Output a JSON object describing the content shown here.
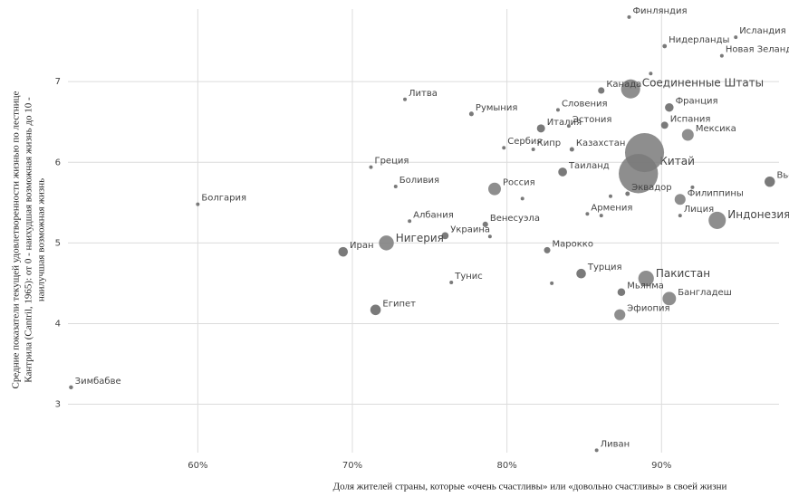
{
  "chart_data": {
    "type": "scatter",
    "x_label": "Доля жителей страны, которые «очень счастливы» или «довольно счастливы» в своей жизни",
    "y_label": [
      "Средние показатели текущей удовлетворенности жизнью по лестнице",
      "Кантрила (Cantril, 1965): от 0 - наихудшая возможная жизнь до 10 -",
      "наилучшая возможная жизнь"
    ],
    "labels": [
      "Финляндия",
      "Исландия",
      "Нидерланды",
      "Новая Зеландия",
      "Соединенные Штаты",
      "Канада",
      "Литва",
      "Румыния",
      "Словения",
      "Франция",
      "Испания",
      "Италия",
      "Эстония",
      "Мексика",
      "Сербия",
      "Кипр",
      "Казахстан",
      "Китай",
      "Греция",
      "Таиланд",
      "Вьетнам",
      "Боливия",
      "Россия",
      "Эквадор",
      "Филиппины",
      "Болгария",
      "Армения",
      "Лиция",
      "Индонезия",
      "Албания",
      "Венесуэла",
      "Украина",
      "Нигерия",
      "Иран",
      "Марокко",
      "Турция",
      "Пакистан",
      "Тунис",
      "Мьянма",
      "Бангладеш",
      "Египет",
      "Эфиопия",
      "Зимбабве",
      "Ливан",
      null,
      null,
      null,
      null,
      null,
      null,
      null,
      null
    ],
    "x": [
      87.9,
      94.8,
      90.2,
      93.9,
      88.0,
      86.1,
      73.4,
      77.7,
      83.3,
      90.5,
      90.2,
      82.2,
      84.0,
      91.7,
      79.8,
      81.7,
      84.2,
      88.5,
      71.2,
      83.6,
      97.0,
      72.8,
      79.2,
      87.8,
      91.2,
      60.0,
      85.2,
      91.2,
      93.6,
      73.7,
      78.6,
      76.0,
      72.2,
      69.4,
      82.6,
      84.8,
      89.0,
      76.4,
      87.4,
      90.5,
      71.5,
      87.3,
      51.8,
      85.8,
      88.9,
      86.7,
      78.9,
      81.0,
      89.3,
      86.1,
      92.0,
      82.9
    ],
    "y": [
      7.8,
      7.55,
      7.44,
      7.32,
      6.91,
      6.89,
      6.78,
      6.6,
      6.65,
      6.68,
      6.46,
      6.42,
      6.45,
      6.34,
      6.18,
      6.16,
      6.16,
      5.86,
      5.94,
      5.88,
      5.76,
      5.7,
      5.67,
      5.61,
      5.54,
      5.48,
      5.36,
      5.34,
      5.28,
      5.27,
      5.23,
      5.09,
      5.0,
      4.89,
      4.91,
      4.62,
      4.56,
      4.51,
      4.39,
      4.31,
      4.17,
      4.11,
      3.21,
      2.43,
      6.12,
      5.58,
      5.08,
      5.55,
      7.1,
      5.34,
      5.69,
      4.5
    ],
    "sizes": [
      6,
      0.4,
      17,
      5,
      330,
      38,
      3,
      19,
      2,
      67,
      47,
      60,
      1,
      126,
      7,
      1,
      19,
      1400,
      10,
      70,
      97,
      12,
      145,
      18,
      108,
      7,
      3,
      7,
      270,
      3,
      28,
      44,
      200,
      83,
      37,
      83,
      220,
      12,
      54,
      165,
      100,
      110,
      15,
      7,
      1380,
      10,
      4,
      9,
      5,
      3,
      12,
      4
    ],
    "color": "#7a7a7a",
    "xlim": [
      51.6,
      97.6
    ],
    "ylim": [
      2.4,
      7.9
    ],
    "xticks": [
      {
        "value": 60,
        "label": "60%"
      },
      {
        "value": 70,
        "label": "70%"
      },
      {
        "value": 80,
        "label": "80%"
      },
      {
        "value": 90,
        "label": "90%"
      }
    ],
    "yticks": [
      3,
      4,
      5,
      6,
      7
    ],
    "grid": true
  }
}
